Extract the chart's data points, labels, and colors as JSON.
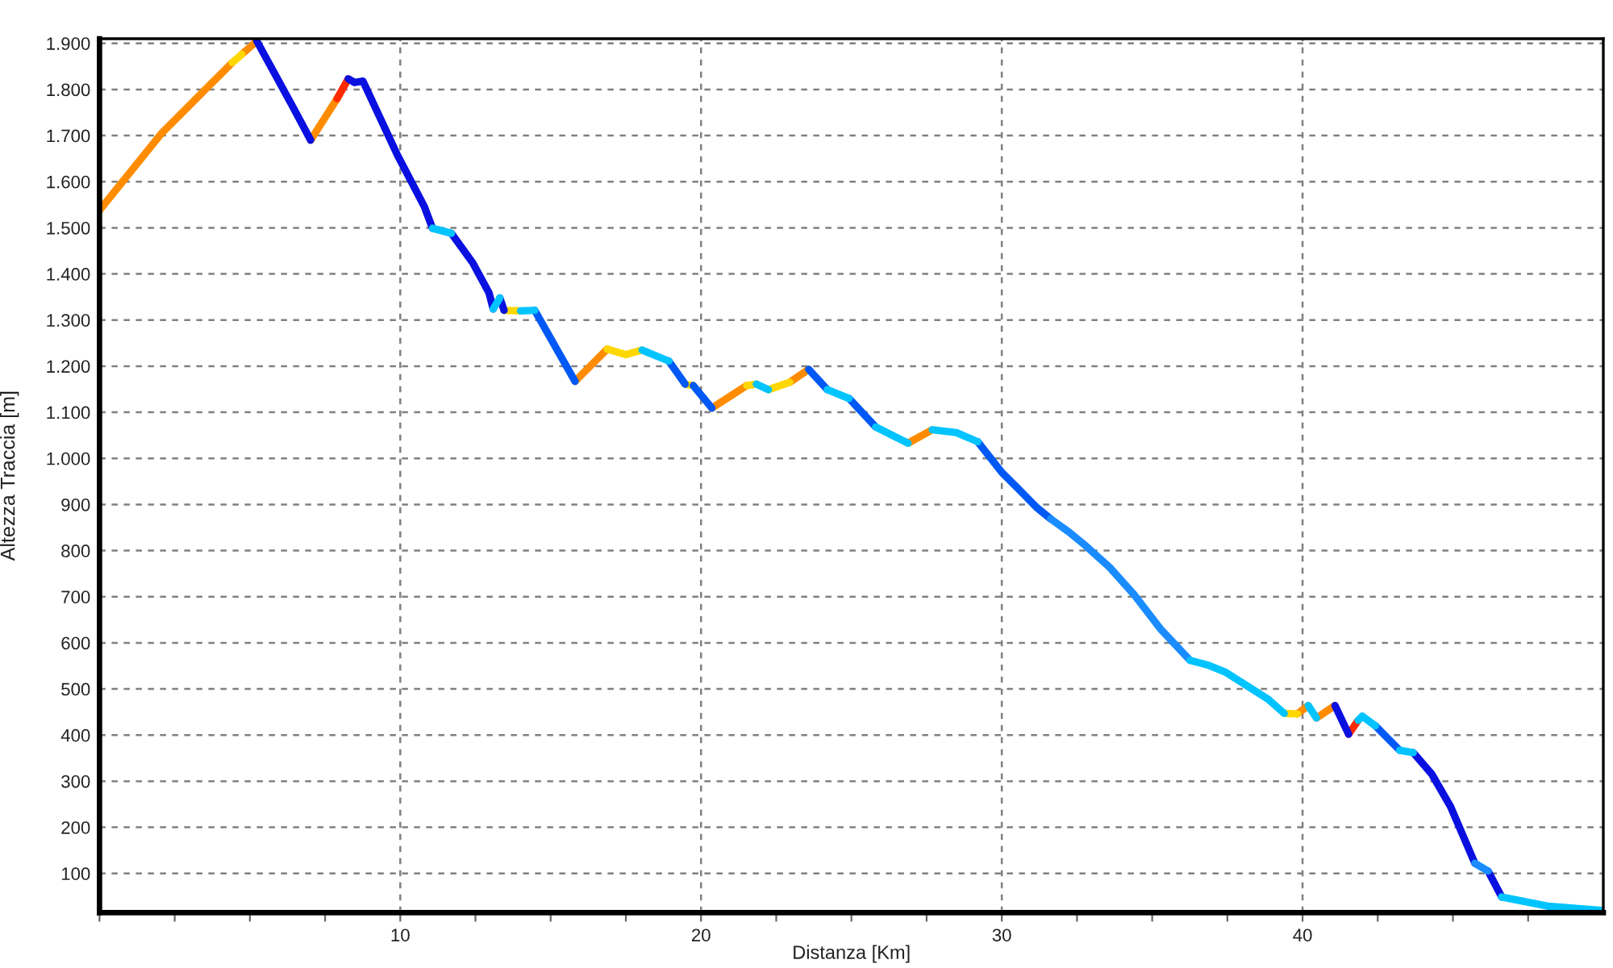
{
  "chart_data": {
    "type": "line",
    "xlabel": "Distanza [Km]",
    "ylabel": "Altezza Traccia [m]",
    "xlim": [
      0,
      50
    ],
    "ylim": [
      15,
      1910
    ],
    "xticks": [
      {
        "value": 0,
        "label": null
      },
      {
        "value": 2.5,
        "label": null
      },
      {
        "value": 5,
        "label": null
      },
      {
        "value": 7.5,
        "label": null
      },
      10,
      {
        "value": 12.5,
        "label": null
      },
      {
        "value": 15,
        "label": null
      },
      {
        "value": 17.5,
        "label": null
      },
      20,
      {
        "value": 22.5,
        "label": null
      },
      {
        "value": 25,
        "label": null
      },
      {
        "value": 27.5,
        "label": null
      },
      30,
      {
        "value": 32.5,
        "label": null
      },
      {
        "value": 35,
        "label": null
      },
      {
        "value": 37.5,
        "label": null
      },
      40,
      {
        "value": 42.5,
        "label": null
      },
      {
        "value": 45,
        "label": null
      },
      {
        "value": 47.5,
        "label": null
      }
    ],
    "yticks": [
      100,
      200,
      300,
      400,
      500,
      600,
      700,
      800,
      900,
      {
        "value": 1000,
        "label": "1.000"
      },
      {
        "value": 1100,
        "label": "1.100"
      },
      {
        "value": 1200,
        "label": "1.200"
      },
      {
        "value": 1300,
        "label": "1.300"
      },
      {
        "value": 1400,
        "label": "1.400"
      },
      {
        "value": 1500,
        "label": "1.500"
      },
      {
        "value": 1600,
        "label": "1.600"
      },
      {
        "value": 1700,
        "label": "1.700"
      },
      {
        "value": 1800,
        "label": "1.800"
      },
      {
        "value": 1900,
        "label": "1.900"
      }
    ],
    "grid": true,
    "line_style": "solid",
    "series": [
      {
        "color": "#ff8c00",
        "x": [
          0,
          2.05,
          4.41,
          null,
          4.73,
          5.23,
          null,
          7.02,
          7.9,
          null,
          15.81,
          16.88,
          null,
          20.36,
          21.52,
          null,
          22.95,
          23.58,
          null,
          26.88,
          27.69,
          null,
          39.83,
          40.19,
          null,
          40.46,
          41.08
        ],
        "values": [
          1538,
          1704,
          1858,
          null,
          1876,
          1905,
          null,
          1690,
          1780,
          null,
          1167,
          1237,
          null,
          1109,
          1158,
          null,
          1165,
          1193,
          null,
          1033,
          1062,
          null,
          446,
          464,
          null,
          437,
          464
        ]
      },
      {
        "color": "#ff2a00",
        "x": [
          7.9,
          8.27,
          null,
          41.53,
          41.85
        ],
        "values": [
          1780,
          1823,
          null,
          402,
          432
        ]
      },
      {
        "color": "#ffd700",
        "x": [
          4.41,
          4.73,
          null,
          13.45,
          14.0,
          null,
          16.88,
          17.5,
          18.04,
          null,
          19.47,
          19.74,
          null,
          21.52,
          21.84,
          null,
          22.24,
          22.95,
          null,
          39.39,
          39.83
        ],
        "values": [
          1858,
          1876,
          null,
          1321,
          1320,
          null,
          1237,
          1225,
          1235,
          null,
          1161,
          1158,
          null,
          1158,
          1161,
          null,
          1149,
          1165,
          null,
          447,
          446
        ]
      },
      {
        "color": "#0a10e0",
        "x": [
          5.23,
          6.43,
          7.02,
          null,
          8.27,
          8.48,
          8.76,
          9.91,
          10.8,
          11.07,
          null,
          11.7,
          12.41,
          12.95,
          13.09,
          null,
          13.31,
          13.45,
          null,
          41.08,
          41.53,
          null,
          43.68,
          44.3,
          44.92,
          45.73,
          null,
          46.17,
          46.62
        ],
        "values": [
          1905,
          1762,
          1690,
          null,
          1823,
          1815,
          1818,
          1657,
          1546,
          1499,
          null,
          1488,
          1424,
          1359,
          1324,
          null,
          1348,
          1321,
          null,
          464,
          402,
          null,
          362,
          315,
          245,
          122,
          null,
          105,
          49
        ]
      },
      {
        "color": "#0058f5",
        "x": [
          14.47,
          15.81,
          null,
          18.93,
          19.47,
          null,
          19.74,
          20.36,
          null,
          23.58,
          24.2,
          null,
          24.92,
          25.81,
          null,
          29.2,
          30.01,
          30.55,
          31.17,
          31.62,
          null,
          42.42,
          43.23
        ],
        "values": [
          1321,
          1167,
          null,
          1211,
          1161,
          null,
          1158,
          1109,
          null,
          1193,
          1149,
          null,
          1130,
          1068,
          null,
          1036,
          969,
          934,
          893,
          869,
          null,
          420,
          367
        ]
      },
      {
        "color": "#1a8cff",
        "x": [
          31.62,
          32.24,
          32.78,
          33.58,
          34.38,
          35.28,
          36.26,
          null,
          45.73,
          46.17
        ],
        "values": [
          869,
          840,
          811,
          764,
          706,
          630,
          562,
          null,
          122,
          105
        ]
      },
      {
        "color": "#00c4ff",
        "x": [
          11.07,
          11.7,
          null,
          13.09,
          13.31,
          null,
          14.0,
          14.47,
          null,
          18.04,
          18.93,
          null,
          21.84,
          22.24,
          null,
          24.2,
          24.92,
          null,
          25.81,
          26.88,
          null,
          27.69,
          28.49,
          29.2,
          null,
          36.26,
          36.89,
          37.42,
          38.13,
          38.85,
          39.39,
          null,
          40.19,
          40.46,
          null,
          41.85,
          41.98,
          42.42,
          null,
          43.23,
          43.68,
          null,
          46.62,
          48.15,
          49.93
        ],
        "values": [
          1499,
          1488,
          null,
          1324,
          1348,
          null,
          1320,
          1321,
          null,
          1235,
          1211,
          null,
          1161,
          1149,
          null,
          1149,
          1130,
          null,
          1068,
          1033,
          null,
          1062,
          1056,
          1036,
          null,
          562,
          551,
          537,
          508,
          478,
          447,
          null,
          464,
          437,
          null,
          432,
          441,
          420,
          null,
          367,
          362,
          null,
          49,
          29,
          20
        ]
      }
    ]
  }
}
